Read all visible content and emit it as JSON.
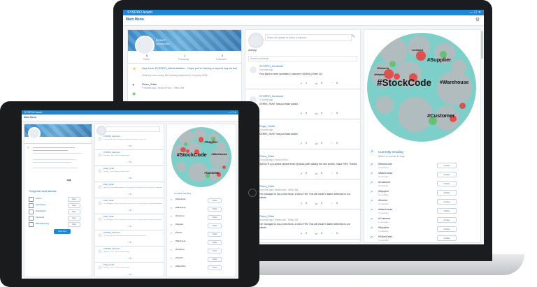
{
  "laptop": {
    "window_title": "SYSPRO Avanti",
    "nav_title": "Main Menu",
    "profile": {
      "name": "SCMKT",
      "subtitle": "administrator"
    },
    "stats": [
      {
        "label": "Posts",
        "value": "6"
      },
      {
        "label": "Following",
        "value": "1"
      },
      {
        "label": "Followers",
        "value": "0"
      }
    ],
    "announcement": {
      "title": "Hey there SYSPRO_Administrator... Hope you're having a superb day so far!",
      "body": "While you were away, the following happened in Company 2016"
    },
    "recent_user": {
      "name": "Pietro_Zoller",
      "meta": "9 months ago | Second Floor - Office 308"
    },
    "recent_post": "@ZOLTR you please today @(stock with) adding the new screen, Value FMS! Thanks",
    "compose_placeholder": "Share an update or follow & discuss...",
    "activity_label": "Activity",
    "search_placeholder": "Search user/issue",
    "feed": [
      {
        "user": "SYSPRO_Kentmore",
        "time": "2 months ago",
        "text": "Post @(new order quotation) Customer 1000000 (Order 12)",
        "likes": "1",
        "shares": "0",
        "comments": "0"
      },
      {
        "user": "SYSPRO_Kentmore",
        "time": "2 months ago",
        "text": "DEREK_HUNT has purchase added",
        "likes": "0",
        "shares": "0",
        "comments": "0"
      },
      {
        "user": "Roger_Smith",
        "time": "2 months ago",
        "text": "DEREK_HUNT has purchase added",
        "likes": "0",
        "shares": "0",
        "comments": "0"
      },
      {
        "user": "Pietro_Zoller",
        "time": "2 months ago | Second Floor",
        "text": "@ZOLTR you please please finish @(stock) with adding the new screen, Value FMS. Thanks",
        "likes": "0",
        "shares": "0",
        "comments": "0"
      },
      {
        "user": "Pietro_Zoller",
        "time": "9 months ago | Warehouse - Office 308",
        "text": "I've managed to buy a new truck, a Volvo FH5. This will result in faster deliveries to our clients.",
        "likes": "0",
        "shares": "0",
        "comments": "0"
      },
      {
        "user": "Pietro_Zoller",
        "time": "9 months ago | Warehouse - Office 308",
        "text": "I've managed to buy a new truck, a Volvo FH5. This will result in faster deliveries to our clients.",
        "likes": "0",
        "shares": "0",
        "comments": "0"
      }
    ],
    "hashtag_cloud": [
      {
        "tag": "#StockCode",
        "tier": "xl"
      },
      {
        "tag": "#Warehouse",
        "tier": "l"
      },
      {
        "tag": "#Supplier",
        "tier": "l"
      },
      {
        "tag": "#Customer",
        "tier": "l"
      },
      {
        "tag": "#Oxfield",
        "tier": "s"
      },
      {
        "tag": "#Roberts",
        "tier": "s"
      },
      {
        "tag": "#Hdealer",
        "tier": "s"
      }
    ],
    "trending_title": "Currently trending",
    "trending_subtitle": "Based on the last 30 days",
    "trending": [
      {
        "tag": "#StockCode",
        "count": "4 mentions",
        "button": "Follow"
      },
      {
        "tag": "#Warehouse",
        "count": "3 mentions",
        "button": "Follow"
      },
      {
        "tag": "#Customer",
        "count": "3 mentions",
        "button": "Follow"
      },
      {
        "tag": "#Supplier",
        "count": "2 mentions",
        "button": "Follow"
      },
      {
        "tag": "#Vendor",
        "count": "2 mentions",
        "button": "Follow"
      },
      {
        "tag": "#Warehouse",
        "count": "2 mentions",
        "button": "Follow"
      },
      {
        "tag": "#Customer",
        "count": "1 mentions",
        "button": "Follow"
      },
      {
        "tag": "#Supplier",
        "count": "1 mentions",
        "button": "Follow"
      },
      {
        "tag": "#SalesOrder",
        "count": "1 mentions",
        "button": "Follow"
      }
    ]
  },
  "tablet": {
    "window_title": "SYSPRO Avanti",
    "nav_title": "Main Menu",
    "sections_title": "Things that need attention",
    "sections": [
      {
        "label": "Admin",
        "button": "Open"
      },
      {
        "label": "Operations",
        "button": "Open"
      },
      {
        "label": "Distribution",
        "button": "Open"
      },
      {
        "label": "Financial",
        "button": "Open"
      },
      {
        "label": "Manufacturing",
        "button": "Open"
      }
    ],
    "primary_button": "Sign Out",
    "trending_title": "Currently trending",
    "cloud_tags": [
      "#StockCode",
      "#Warehouse",
      "#Supplier",
      "#Customer"
    ]
  },
  "colors": {
    "accent": "#1e88d3",
    "cloud": "#7ecfc9",
    "bubble_gray": "#b7b9bb",
    "bubble_red": "#e2433f",
    "bubble_green": "#5fbf6a"
  }
}
